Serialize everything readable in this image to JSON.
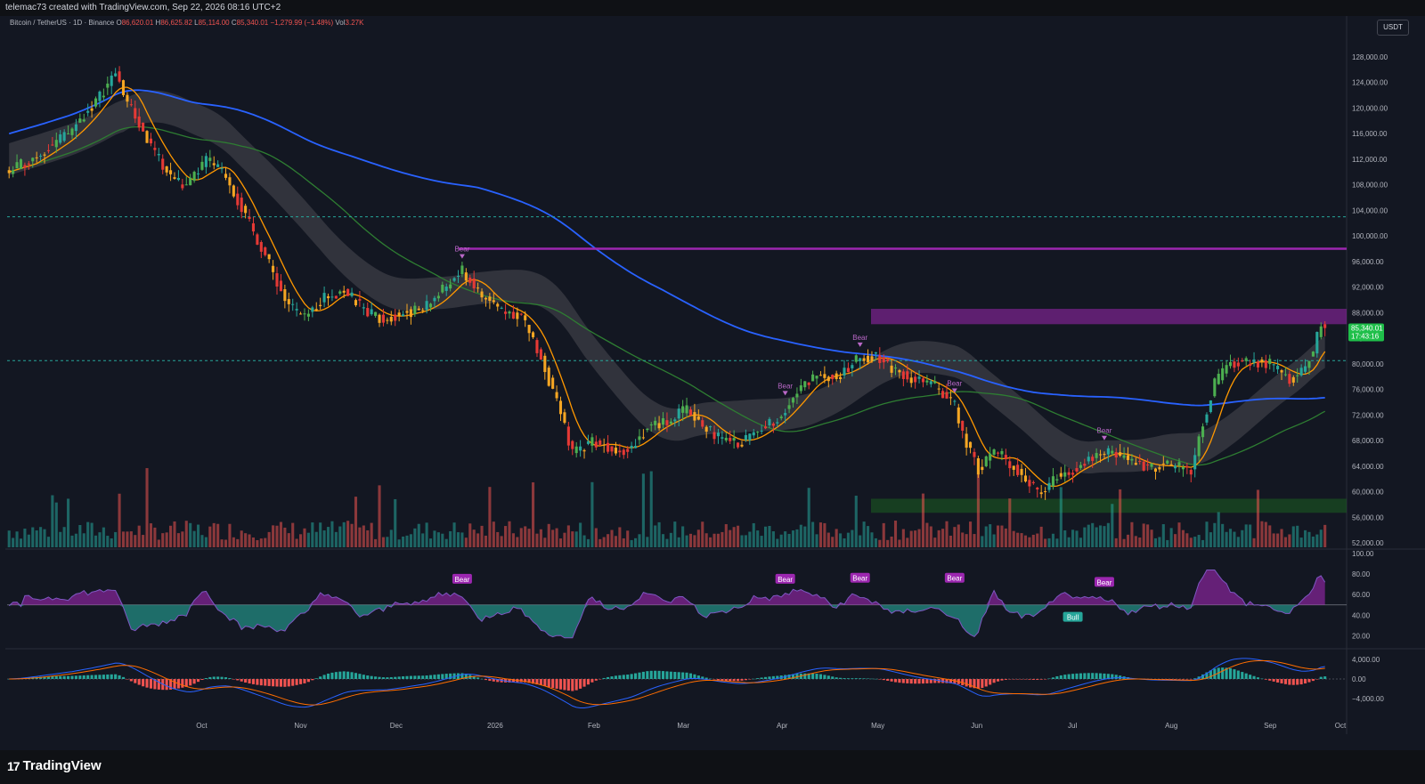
{
  "header": {
    "credit": "telemac73 created with TradingView.com, Sep 22, 2026 08:16 UTC+2"
  },
  "symbol": {
    "name": "Bitcoin / TetherUS · 1D · Binance",
    "open_label": "O",
    "open": "86,620.01",
    "high_label": "H",
    "high": "86,625.82",
    "low_label": "L",
    "low": "85,114.00",
    "close_label": "C",
    "close": "85,340.01",
    "change": "−1,279.99 (−1.48%)",
    "vol_label": "Vol",
    "vol": "3.27K"
  },
  "currency_button": "USDT",
  "footer": {
    "brand": "TradingView"
  },
  "colors": {
    "up": "#26a69a",
    "down": "#ef5350",
    "bull_candle": "#4caf50",
    "bear_candle": "#e53935",
    "orange_candle": "#f5a623",
    "ma_blue": "#2962ff",
    "ma_green": "#2e7d32",
    "ma_orange": "#ff9800",
    "purple": "#9c27b0",
    "rsi_line": "#7e57c2",
    "macd_blue": "#2962ff",
    "macd_orange": "#ff6d00"
  },
  "chart_data": [
    {
      "type": "candlestick",
      "title": "Bitcoin / TetherUS · 1D · Binance",
      "ylim": [
        52000,
        130000
      ],
      "y_ticks": [
        "128,000.00",
        "124,000.00",
        "120,000.00",
        "116,000.00",
        "112,000.00",
        "108,000.00",
        "104,000.00",
        "100,000.00",
        "96,000.00",
        "92,000.00",
        "88,000.00",
        "84,000.00",
        "80,000.00",
        "76,000.00",
        "72,000.00",
        "68,000.00",
        "64,000.00",
        "60,000.00",
        "56,000.00",
        "52,000.00"
      ],
      "x_ticks": [
        "Oct",
        "Nov",
        "Dec",
        "2026",
        "Feb",
        "Mar",
        "Apr",
        "May",
        "Jun",
        "Jul",
        "Aug",
        "Sep",
        "Oct"
      ],
      "last_price": "85,340.01",
      "countdown": "17:43:16",
      "price_path": [
        [
          0,
          110000
        ],
        [
          8,
          113000
        ],
        [
          15,
          116000
        ],
        [
          22,
          121000
        ],
        [
          27,
          125500
        ],
        [
          30,
          121000
        ],
        [
          35,
          115000
        ],
        [
          40,
          110000
        ],
        [
          45,
          107500
        ],
        [
          50,
          112000
        ],
        [
          55,
          109500
        ],
        [
          60,
          103000
        ],
        [
          65,
          97000
        ],
        [
          70,
          90000
        ],
        [
          75,
          87000
        ],
        [
          80,
          90500
        ],
        [
          85,
          91500
        ],
        [
          90,
          88500
        ],
        [
          95,
          87000
        ],
        [
          100,
          88000
        ],
        [
          105,
          88500
        ],
        [
          110,
          91500
        ],
        [
          115,
          94500
        ],
        [
          120,
          90500
        ],
        [
          125,
          88500
        ],
        [
          130,
          87500
        ],
        [
          135,
          81000
        ],
        [
          140,
          72000
        ],
        [
          143,
          66000
        ],
        [
          148,
          68000
        ],
        [
          152,
          67000
        ],
        [
          157,
          66500
        ],
        [
          162,
          70000
        ],
        [
          167,
          71000
        ],
        [
          172,
          73000
        ],
        [
          175,
          71000
        ],
        [
          180,
          68500
        ],
        [
          185,
          67500
        ],
        [
          190,
          69500
        ],
        [
          195,
          71500
        ],
        [
          200,
          75500
        ],
        [
          205,
          78500
        ],
        [
          210,
          78000
        ],
        [
          215,
          80500
        ],
        [
          220,
          81500
        ],
        [
          225,
          79000
        ],
        [
          230,
          77500
        ],
        [
          235,
          76500
        ],
        [
          240,
          73500
        ],
        [
          243,
          67500
        ],
        [
          246,
          63500
        ],
        [
          250,
          66500
        ],
        [
          255,
          64000
        ],
        [
          260,
          60500
        ],
        [
          263,
          60000
        ],
        [
          266,
          62500
        ],
        [
          270,
          63500
        ],
        [
          275,
          65500
        ],
        [
          280,
          66500
        ],
        [
          285,
          64500
        ],
        [
          290,
          64000
        ],
        [
          295,
          64000
        ],
        [
          300,
          63500
        ],
        [
          303,
          70500
        ],
        [
          306,
          77000
        ],
        [
          310,
          80000
        ],
        [
          315,
          80500
        ],
        [
          320,
          80000
        ],
        [
          325,
          77500
        ],
        [
          328,
          78500
        ],
        [
          331,
          82000
        ],
        [
          333,
          86620
        ],
        [
          334,
          85340
        ]
      ],
      "series": [
        {
          "name": "Bear",
          "kind": "divergence_labels",
          "points": [
            [
              115,
              "Bear"
            ],
            [
              197,
              "Bear"
            ],
            [
              216,
              "Bear"
            ],
            [
              240,
              "Bear"
            ],
            [
              278,
              "Bear"
            ]
          ]
        }
      ],
      "horizontal_levels": [
        98000,
        88000,
        57000
      ],
      "zones": [
        {
          "from": 86200,
          "to": 88600,
          "color": "#9c27b0"
        },
        {
          "from": 56700,
          "to": 58900,
          "color": "#1b5e20"
        }
      ]
    },
    {
      "type": "line",
      "title": "",
      "ylim": [
        10,
        100
      ],
      "y_ticks": [
        "100.00",
        "80.00",
        "60.00",
        "40.00",
        "20.00"
      ],
      "labels": [
        "Bear",
        "Bear",
        "Bear",
        "Bear",
        "Bear",
        "Bull"
      ],
      "baseline": 50
    },
    {
      "type": "histogram",
      "title": "",
      "y_ticks": [
        "4,000.00",
        "0.00",
        "−4,000.00"
      ]
    }
  ]
}
